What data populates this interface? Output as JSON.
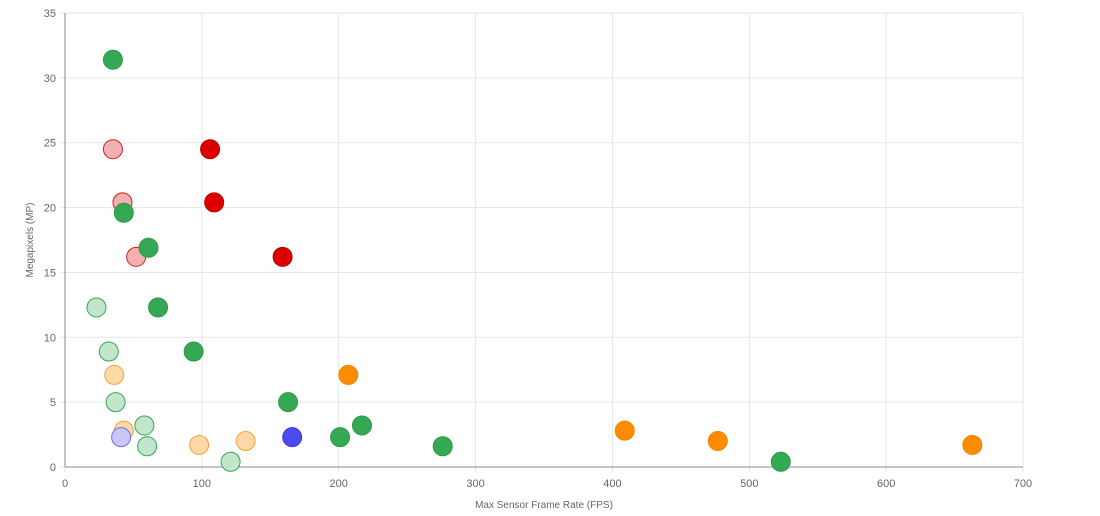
{
  "chart_data": {
    "type": "scatter",
    "xlabel": "Max Sensor Frame Rate (FPS)",
    "ylabel": "Megapixels (MP)",
    "xlim": [
      0,
      700
    ],
    "ylim": [
      0,
      35
    ],
    "x_ticks": [
      "0",
      "100",
      "200",
      "300",
      "400",
      "500",
      "600",
      "700"
    ],
    "y_ticks": [
      "0",
      "5",
      "10",
      "15",
      "20",
      "25",
      "30",
      "35"
    ],
    "x_tick_values": [
      0,
      100,
      200,
      300,
      400,
      500,
      600,
      700
    ],
    "y_tick_values": [
      0,
      5,
      10,
      15,
      20,
      25,
      30,
      35
    ],
    "grid": true,
    "legend": "none",
    "series": [
      {
        "color": "#34a853",
        "fill": "#34a853",
        "stroke": "#2a9a48",
        "style": "solid",
        "points": [
          [
            35,
            31.4
          ],
          [
            43,
            19.6
          ],
          [
            61,
            16.9
          ],
          [
            68,
            12.3
          ],
          [
            94,
            8.9
          ],
          [
            163,
            5.0
          ],
          [
            201,
            2.3
          ],
          [
            217,
            3.2
          ],
          [
            276,
            1.6
          ],
          [
            523,
            0.4
          ]
        ]
      },
      {
        "color": "#34a853",
        "fill": "#c2e6cc",
        "stroke": "#34a853",
        "style": "light",
        "points": [
          [
            23,
            12.3
          ],
          [
            32,
            8.9
          ],
          [
            37,
            5.0
          ],
          [
            58,
            3.2
          ],
          [
            60,
            1.6
          ],
          [
            121,
            0.4
          ]
        ]
      },
      {
        "color": "#dd0000",
        "fill": "#dd0000",
        "stroke": "#bb0000",
        "style": "solid",
        "points": [
          [
            106,
            24.5
          ],
          [
            109,
            20.4
          ],
          [
            159,
            16.2
          ]
        ]
      },
      {
        "color": "#dd0000",
        "fill": "#f4b0b0",
        "stroke": "#cc2222",
        "style": "light",
        "points": [
          [
            35,
            24.5
          ],
          [
            42,
            20.4
          ],
          [
            52,
            16.2
          ]
        ]
      },
      {
        "color": "#ff8c00",
        "fill": "#ff8c00",
        "stroke": "#f08400",
        "style": "solid",
        "points": [
          [
            207,
            7.1
          ],
          [
            409,
            2.8
          ],
          [
            477,
            2.0
          ],
          [
            663,
            1.7
          ]
        ]
      },
      {
        "color": "#ff8c00",
        "fill": "#ffd8a8",
        "stroke": "#f5a040",
        "style": "light",
        "points": [
          [
            36,
            7.1
          ],
          [
            43,
            2.8
          ],
          [
            98,
            1.7
          ],
          [
            132,
            2.0
          ]
        ]
      },
      {
        "color": "#4b4bf0",
        "fill": "#4b4bf0",
        "stroke": "#3a3ae0",
        "style": "solid",
        "points": [
          [
            166,
            2.3
          ]
        ]
      },
      {
        "color": "#4b4bf0",
        "fill": "#c8c8f8",
        "stroke": "#6a6af0",
        "style": "light",
        "points": [
          [
            41,
            2.3
          ]
        ]
      }
    ]
  }
}
